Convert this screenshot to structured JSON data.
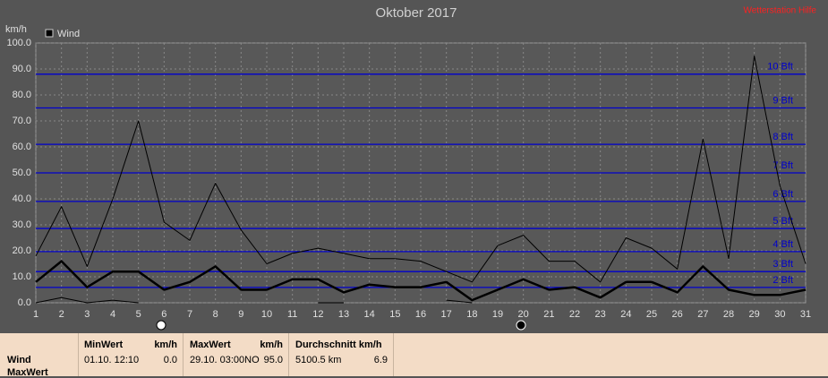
{
  "chart_data": {
    "type": "line",
    "title": "Oktober 2017",
    "help_link": "Wetterstation Hilfe",
    "y_label": "km/h",
    "x": [
      1,
      2,
      3,
      4,
      5,
      6,
      7,
      8,
      9,
      10,
      11,
      12,
      13,
      14,
      15,
      16,
      17,
      18,
      19,
      20,
      21,
      22,
      23,
      24,
      25,
      26,
      27,
      28,
      29,
      30,
      31
    ],
    "series": [
      {
        "name": "Wind",
        "color": "#000000",
        "width": 1,
        "values": [
          18,
          37,
          14,
          40,
          70,
          31,
          24,
          46,
          28,
          15,
          19,
          21,
          19,
          17,
          17,
          16,
          12,
          8,
          22,
          26,
          16,
          16,
          8,
          25,
          21,
          13,
          63,
          17,
          95,
          45,
          15
        ]
      },
      {
        "color": "#000000",
        "width": 2.5,
        "values": [
          8,
          16,
          6,
          12,
          12,
          5,
          8,
          14,
          5,
          5,
          9,
          9,
          4,
          7,
          6,
          6,
          8,
          1,
          5,
          9,
          5,
          6,
          2,
          8,
          8,
          4,
          14,
          5,
          3,
          3,
          5
        ]
      },
      {
        "color": "#000000",
        "width": 1,
        "values": [
          0,
          2,
          0,
          1,
          0,
          null,
          null,
          null,
          null,
          null,
          null,
          0,
          0,
          null,
          null,
          null,
          1,
          0,
          null,
          null,
          null,
          null,
          null,
          null,
          null,
          null,
          null,
          null,
          null,
          null,
          null
        ]
      }
    ],
    "xlim": [
      1,
      31
    ],
    "xticks": [
      1,
      2,
      3,
      4,
      5,
      6,
      7,
      8,
      9,
      10,
      11,
      12,
      13,
      14,
      15,
      16,
      17,
      18,
      19,
      20,
      21,
      22,
      23,
      24,
      25,
      26,
      27,
      28,
      29,
      30,
      31
    ],
    "ylim": [
      0,
      100
    ],
    "yticks": [
      {
        "value": 0,
        "label": "0.0"
      },
      {
        "value": 10,
        "label": "10.0"
      },
      {
        "value": 20,
        "label": "20.0"
      },
      {
        "value": 30,
        "label": "30.0"
      },
      {
        "value": 40,
        "label": "40.0"
      },
      {
        "value": 50,
        "label": "50.0"
      },
      {
        "value": 60,
        "label": "60.0"
      },
      {
        "value": 70,
        "label": "70.0"
      },
      {
        "value": 80,
        "label": "80.0"
      },
      {
        "value": 90,
        "label": "90.0"
      },
      {
        "value": 100,
        "label": "100.0"
      }
    ],
    "grid": true,
    "reference_color": "#0000cc",
    "reference_lines": [
      {
        "value": 5.9,
        "label": "2 Bft"
      },
      {
        "value": 12,
        "label": "3 Bft"
      },
      {
        "value": 19.7,
        "label": "4 Bft"
      },
      {
        "value": 28.6,
        "label": "5 Bft"
      },
      {
        "value": 39,
        "label": "6 Bft"
      },
      {
        "value": 50,
        "label": "7 Bft"
      },
      {
        "value": 61,
        "label": "8 Bft"
      },
      {
        "value": 75,
        "label": "9 Bft"
      },
      {
        "value": 88,
        "label": "10 Bft"
      }
    ]
  },
  "table": {
    "row_labels": [
      "Wind",
      "MaxWert"
    ],
    "columns": [
      {
        "header": "MinWert",
        "unit": "km/h",
        "date": "01.10.  12:10",
        "value": "0.0"
      },
      {
        "header": "MaxWert",
        "unit": "km/h",
        "date": "29.10.  03:00NO",
        "value": "95.0"
      },
      {
        "header": "Durchschnitt km/h",
        "date": "5100.5 km",
        "value": "6.9"
      }
    ]
  }
}
